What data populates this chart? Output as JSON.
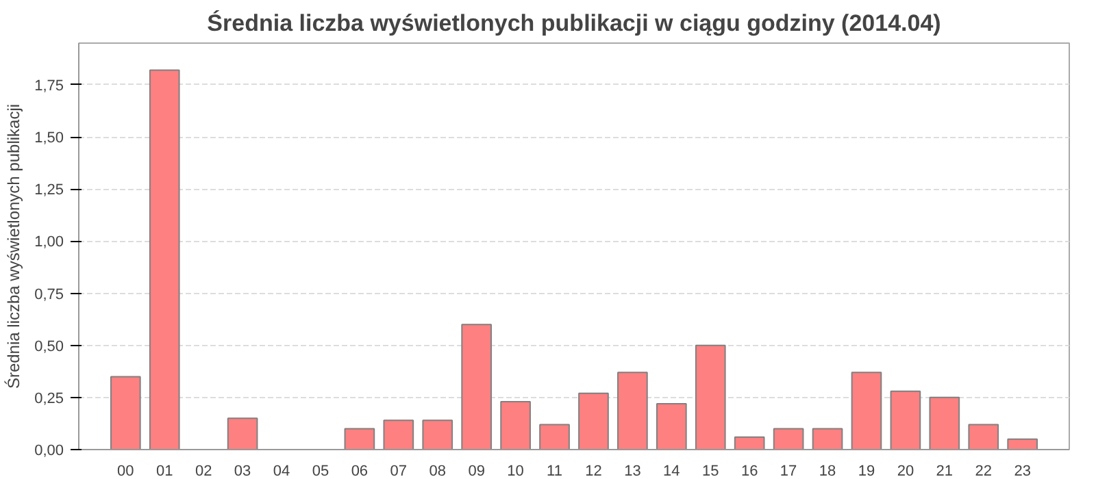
{
  "chart_data": {
    "type": "bar",
    "title": "Średnia liczba wyświetlonych publikacji w ciągu godziny (2014.04)",
    "ylabel": "Średnia liczba wyświetlonych publikacji",
    "categories": [
      "00",
      "01",
      "02",
      "03",
      "04",
      "05",
      "06",
      "07",
      "08",
      "09",
      "10",
      "11",
      "12",
      "13",
      "14",
      "15",
      "16",
      "17",
      "18",
      "19",
      "20",
      "21",
      "22",
      "23"
    ],
    "values": [
      0.35,
      1.82,
      0,
      0.15,
      0,
      0,
      0.1,
      0.14,
      0.14,
      0.6,
      0.23,
      0.12,
      0.27,
      0.37,
      0.22,
      0.5,
      0.06,
      0.1,
      0.1,
      0.37,
      0.28,
      0.25,
      0.12,
      0.05
    ],
    "color": "#ff8080",
    "ylim": [
      0,
      1.95
    ],
    "yticks": [
      {
        "value": 0,
        "label": "0,00"
      },
      {
        "value": 0.25,
        "label": "0,25"
      },
      {
        "value": 0.5,
        "label": "0,50"
      },
      {
        "value": 0.75,
        "label": "0,75"
      },
      {
        "value": 1.0,
        "label": "1,00"
      },
      {
        "value": 1.25,
        "label": "1,25"
      },
      {
        "value": 1.5,
        "label": "1,50"
      },
      {
        "value": 1.75,
        "label": "1,75"
      }
    ],
    "grid": "y"
  }
}
